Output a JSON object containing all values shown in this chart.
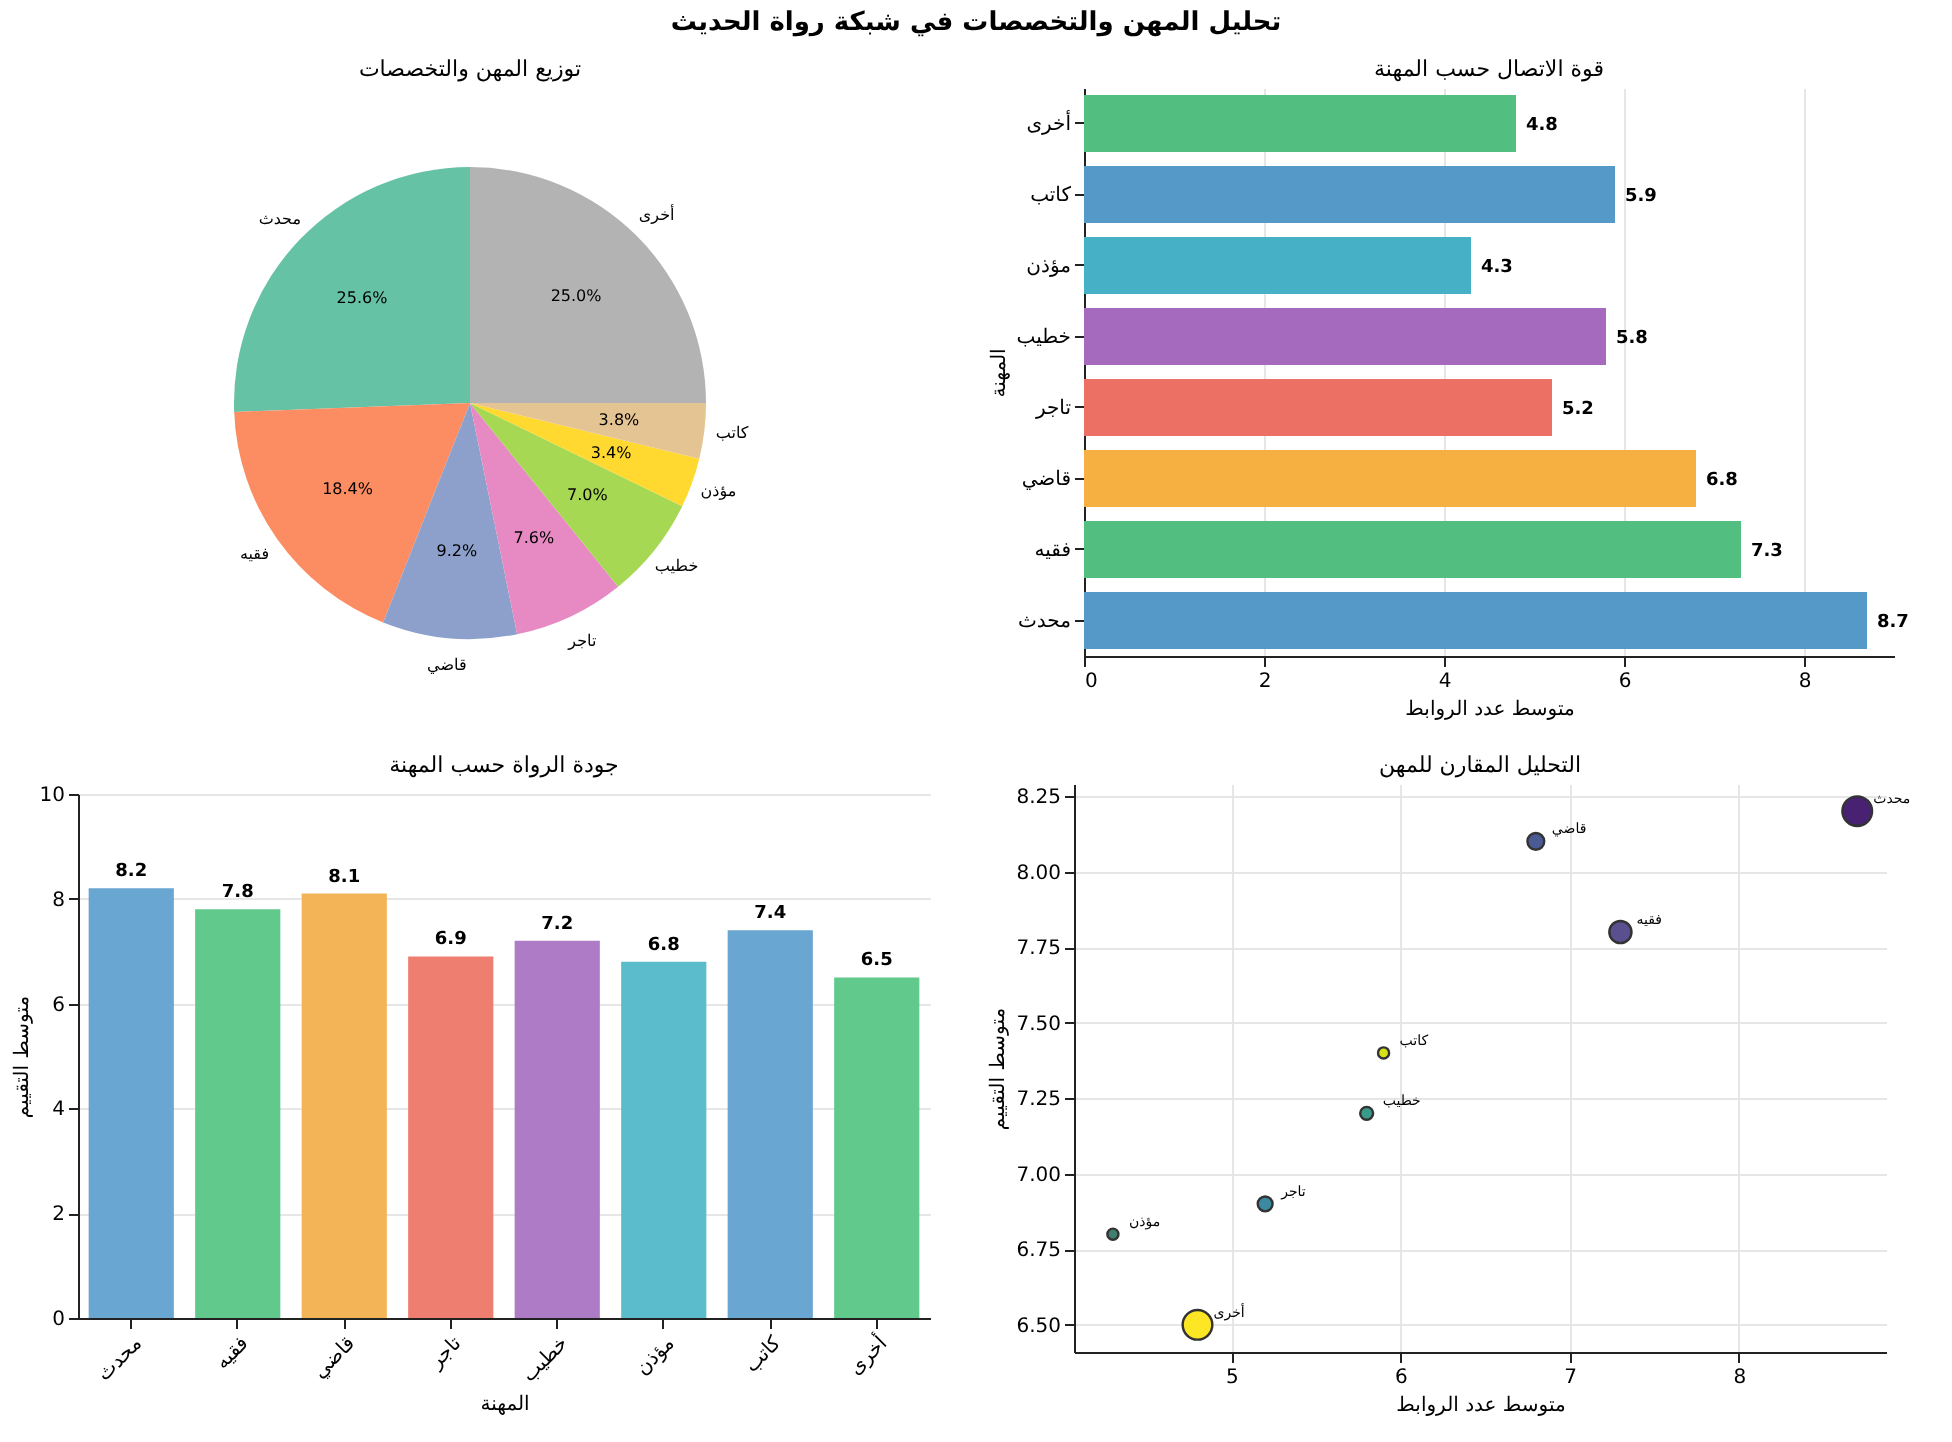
{
  "chart_data": [
    {
      "type": "other",
      "title": "تحليل المهن والتخصصات في شبكة رواة الحديث"
    },
    {
      "type": "pie",
      "title": "توزيع المهن والتخصصات",
      "categories": [
        "محدث",
        "فقيه",
        "قاضي",
        "تاجر",
        "خطيب",
        "مؤذن",
        "كاتب",
        "أخرى"
      ],
      "values": [
        25.6,
        18.4,
        9.2,
        7.6,
        7.0,
        3.4,
        3.8,
        25.0
      ],
      "value_labels": [
        "25.6%",
        "18.4%",
        "9.2%",
        "7.6%",
        "7.0%",
        "3.4%",
        "3.8%",
        "25.0%"
      ],
      "colors": [
        "#66c2a5",
        "#fc8d62",
        "#8da0cb",
        "#e78ac3",
        "#a6d854",
        "#ffd92f",
        "#e5c494",
        "#b3b3b3"
      ]
    },
    {
      "type": "bar",
      "orientation": "horizontal",
      "title": "قوة الاتصال حسب المهنة",
      "xlabel": "متوسط عدد الروابط",
      "ylabel": "المهنة",
      "categories": [
        "أخرى",
        "كاتب",
        "مؤذن",
        "خطيب",
        "تاجر",
        "قاضي",
        "فقيه",
        "محدث"
      ],
      "values": [
        4.8,
        5.9,
        4.3,
        5.8,
        5.2,
        6.8,
        7.3,
        8.7
      ],
      "colors": [
        "#52be80",
        "#5499c7",
        "#45b0c6",
        "#a569bd",
        "#ec7063",
        "#f5b041",
        "#52be80",
        "#5499c7"
      ],
      "xlim": [
        0,
        9.0
      ],
      "xticks": [
        0,
        2,
        4,
        6,
        8
      ],
      "grid": "x",
      "data_labels": true
    },
    {
      "type": "bar",
      "title": "جودة الرواة حسب المهنة",
      "xlabel": "المهنة",
      "ylabel": "متوسط التقييم",
      "categories": [
        "محدث",
        "فقيه",
        "قاضي",
        "تاجر",
        "خطيب",
        "مؤذن",
        "كاتب",
        "أخرى"
      ],
      "values": [
        8.2,
        7.8,
        8.1,
        6.9,
        7.2,
        6.8,
        7.4,
        6.5
      ],
      "colors": [
        "#6aa6d2",
        "#62c98d",
        "#f2b457",
        "#ee7e6f",
        "#ae7cc7",
        "#5bbccc",
        "#6aa6d2",
        "#62c98d"
      ],
      "ylim": [
        0,
        10
      ],
      "yticks": [
        0,
        2,
        4,
        6,
        8,
        10
      ],
      "grid": "y",
      "data_labels": true
    },
    {
      "type": "bubble",
      "title": "التحليل المقارن للمهن",
      "xlabel": "متوسط عدد الروابط",
      "ylabel": "متوسط التقييم",
      "x": [
        8.7,
        7.3,
        6.8,
        5.2,
        5.8,
        4.3,
        5.9,
        4.8
      ],
      "values": [
        8.2,
        7.8,
        8.1,
        6.9,
        7.2,
        6.8,
        7.4,
        6.5
      ],
      "sizes": [
        1,
        0.56,
        0.32,
        0.25,
        0.19,
        0.14,
        0.14,
        1
      ],
      "colors": [
        "#482173",
        "#5a4f8f",
        "#4a5a93",
        "#3b8aa0",
        "#3a9a8a",
        "#3f7f6f",
        "#d8e219",
        "#fde725"
      ],
      "xlim": [
        4.07,
        8.87
      ],
      "xticks": [
        5,
        6,
        7,
        8
      ],
      "ylim": [
        6.41,
        8.29
      ],
      "yticks": [
        {
          "value": 6.5,
          "label": "6.50"
        },
        {
          "value": 6.75,
          "label": "6.75"
        },
        {
          "value": 7.0,
          "label": "7.00"
        },
        {
          "value": 7.25,
          "label": "7.25"
        },
        {
          "value": 7.5,
          "label": "7.50"
        },
        {
          "value": 7.75,
          "label": "7.75"
        },
        {
          "value": 8.0,
          "label": "8.00"
        },
        {
          "value": 8.25,
          "label": "8.25"
        }
      ],
      "grid": true,
      "annotations": [
        {
          "text": "محدث",
          "x": 8.7,
          "y": 8.2
        },
        {
          "text": "فقيه",
          "x": 7.3,
          "y": 7.8
        },
        {
          "text": "قاضي",
          "x": 6.8,
          "y": 8.1
        },
        {
          "text": "تاجر",
          "x": 5.2,
          "y": 6.9
        },
        {
          "text": "خطيب",
          "x": 5.8,
          "y": 7.2
        },
        {
          "text": "مؤذن",
          "x": 4.3,
          "y": 6.8
        },
        {
          "text": "كاتب",
          "x": 5.9,
          "y": 7.4
        },
        {
          "text": "أخرى",
          "x": 4.8,
          "y": 6.5
        }
      ]
    }
  ]
}
